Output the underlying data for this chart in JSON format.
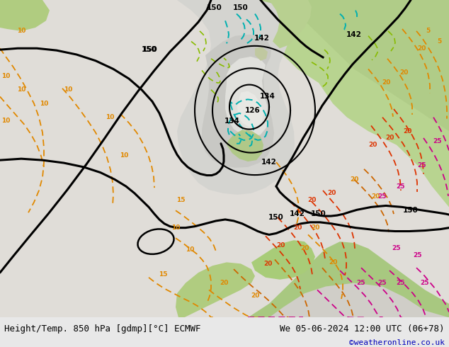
{
  "title_left": "Height/Temp. 850 hPa [gdmp][°C] ECMWF",
  "title_right": "We 05-06-2024 12:00 UTC (06+78)",
  "credit": "©weatheronline.co.uk",
  "bottom_bar_color": "#e8e8e8",
  "text_color": "#000000",
  "credit_color": "#0000bb",
  "font_size_title": 9,
  "font_size_credit": 8,
  "fig_width": 6.34,
  "fig_height": 4.9,
  "dpi": 100,
  "map_light_green": "#b8d4a0",
  "map_pale_green": "#c8dca8",
  "map_gray_light": "#d0d0d0",
  "map_gray_pale": "#c0c0c0",
  "map_ocean_gray": "#e0ddd8",
  "map_white_gray": "#ebebeb",
  "map_dark_green": "#a0c880",
  "sea_color": "#dcdcd4"
}
